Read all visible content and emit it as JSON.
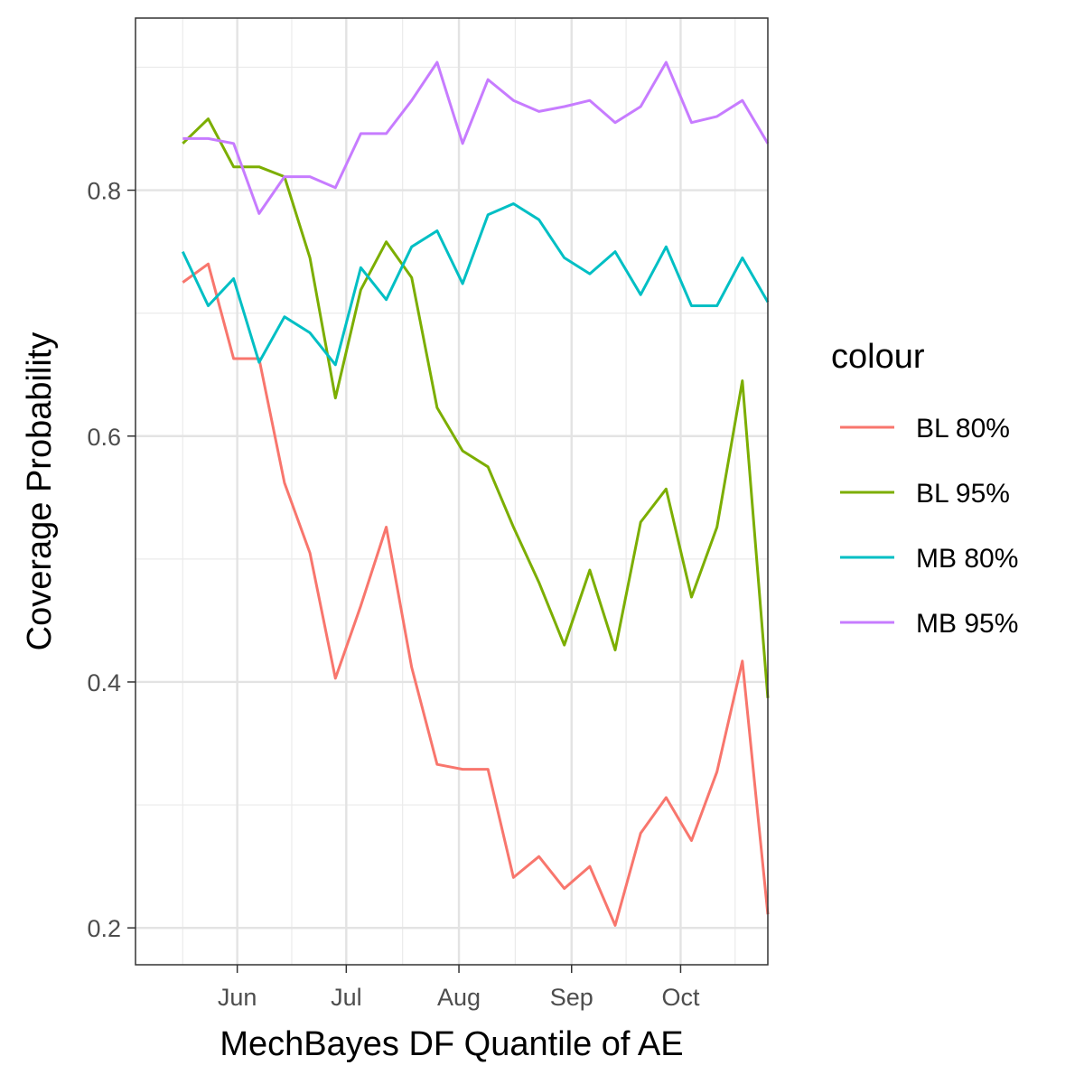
{
  "chart_data": {
    "type": "line",
    "xlabel": "MechBayes DF Quantile of AE",
    "ylabel": "Coverage Probability",
    "x_tick_labels": [
      "Jun",
      "Jul",
      "Aug",
      "Sep",
      "Oct"
    ],
    "x_tick_dates": [
      "2020-06-01",
      "2020-07-01",
      "2020-08-01",
      "2020-09-01",
      "2020-10-01"
    ],
    "x_range": [
      "2020-05-04",
      "2020-10-25"
    ],
    "y_ticks": [
      0.2,
      0.4,
      0.6,
      0.8
    ],
    "y_tick_labels": [
      "0.2",
      "0.4",
      "0.6",
      "0.8"
    ],
    "ylim": [
      0.17,
      0.94
    ],
    "grid": true,
    "legend": {
      "title": "colour",
      "position": "right"
    },
    "x": [
      "2020-05-17",
      "2020-05-24",
      "2020-05-31",
      "2020-06-07",
      "2020-06-14",
      "2020-06-21",
      "2020-06-28",
      "2020-07-05",
      "2020-07-12",
      "2020-07-19",
      "2020-07-26",
      "2020-08-02",
      "2020-08-09",
      "2020-08-16",
      "2020-08-23",
      "2020-08-30",
      "2020-09-06",
      "2020-09-13",
      "2020-09-20",
      "2020-09-27",
      "2020-10-04",
      "2020-10-11",
      "2020-10-18",
      "2020-10-25"
    ],
    "series": [
      {
        "name": "BL 80%",
        "color": "#F8766D",
        "values": [
          0.725,
          0.74,
          0.663,
          0.663,
          0.562,
          0.505,
          0.403,
          0.462,
          0.526,
          0.412,
          0.333,
          0.329,
          0.329,
          0.241,
          0.258,
          0.232,
          0.25,
          0.202,
          0.277,
          0.306,
          0.271,
          0.327,
          0.417,
          0.211
        ]
      },
      {
        "name": "BL 95%",
        "color": "#7CAE00",
        "values": [
          0.838,
          0.858,
          0.819,
          0.819,
          0.811,
          0.745,
          0.631,
          0.719,
          0.758,
          0.729,
          0.623,
          0.588,
          0.575,
          0.526,
          0.481,
          0.43,
          0.491,
          0.426,
          0.53,
          0.557,
          0.469,
          0.526,
          0.645,
          0.387
        ]
      },
      {
        "name": "MB 80%",
        "color": "#00BFC4",
        "values": [
          0.75,
          0.706,
          0.728,
          0.66,
          0.697,
          0.684,
          0.658,
          0.737,
          0.711,
          0.754,
          0.767,
          0.724,
          0.78,
          0.789,
          0.776,
          0.745,
          0.732,
          0.75,
          0.715,
          0.754,
          0.706,
          0.706,
          0.745,
          0.709
        ]
      },
      {
        "name": "MB 95%",
        "color": "#C77CFF",
        "values": [
          0.842,
          0.842,
          0.838,
          0.781,
          0.811,
          0.811,
          0.802,
          0.846,
          0.846,
          0.873,
          0.904,
          0.838,
          0.89,
          0.873,
          0.864,
          0.868,
          0.873,
          0.855,
          0.868,
          0.904,
          0.855,
          0.86,
          0.873,
          0.838
        ]
      }
    ]
  }
}
